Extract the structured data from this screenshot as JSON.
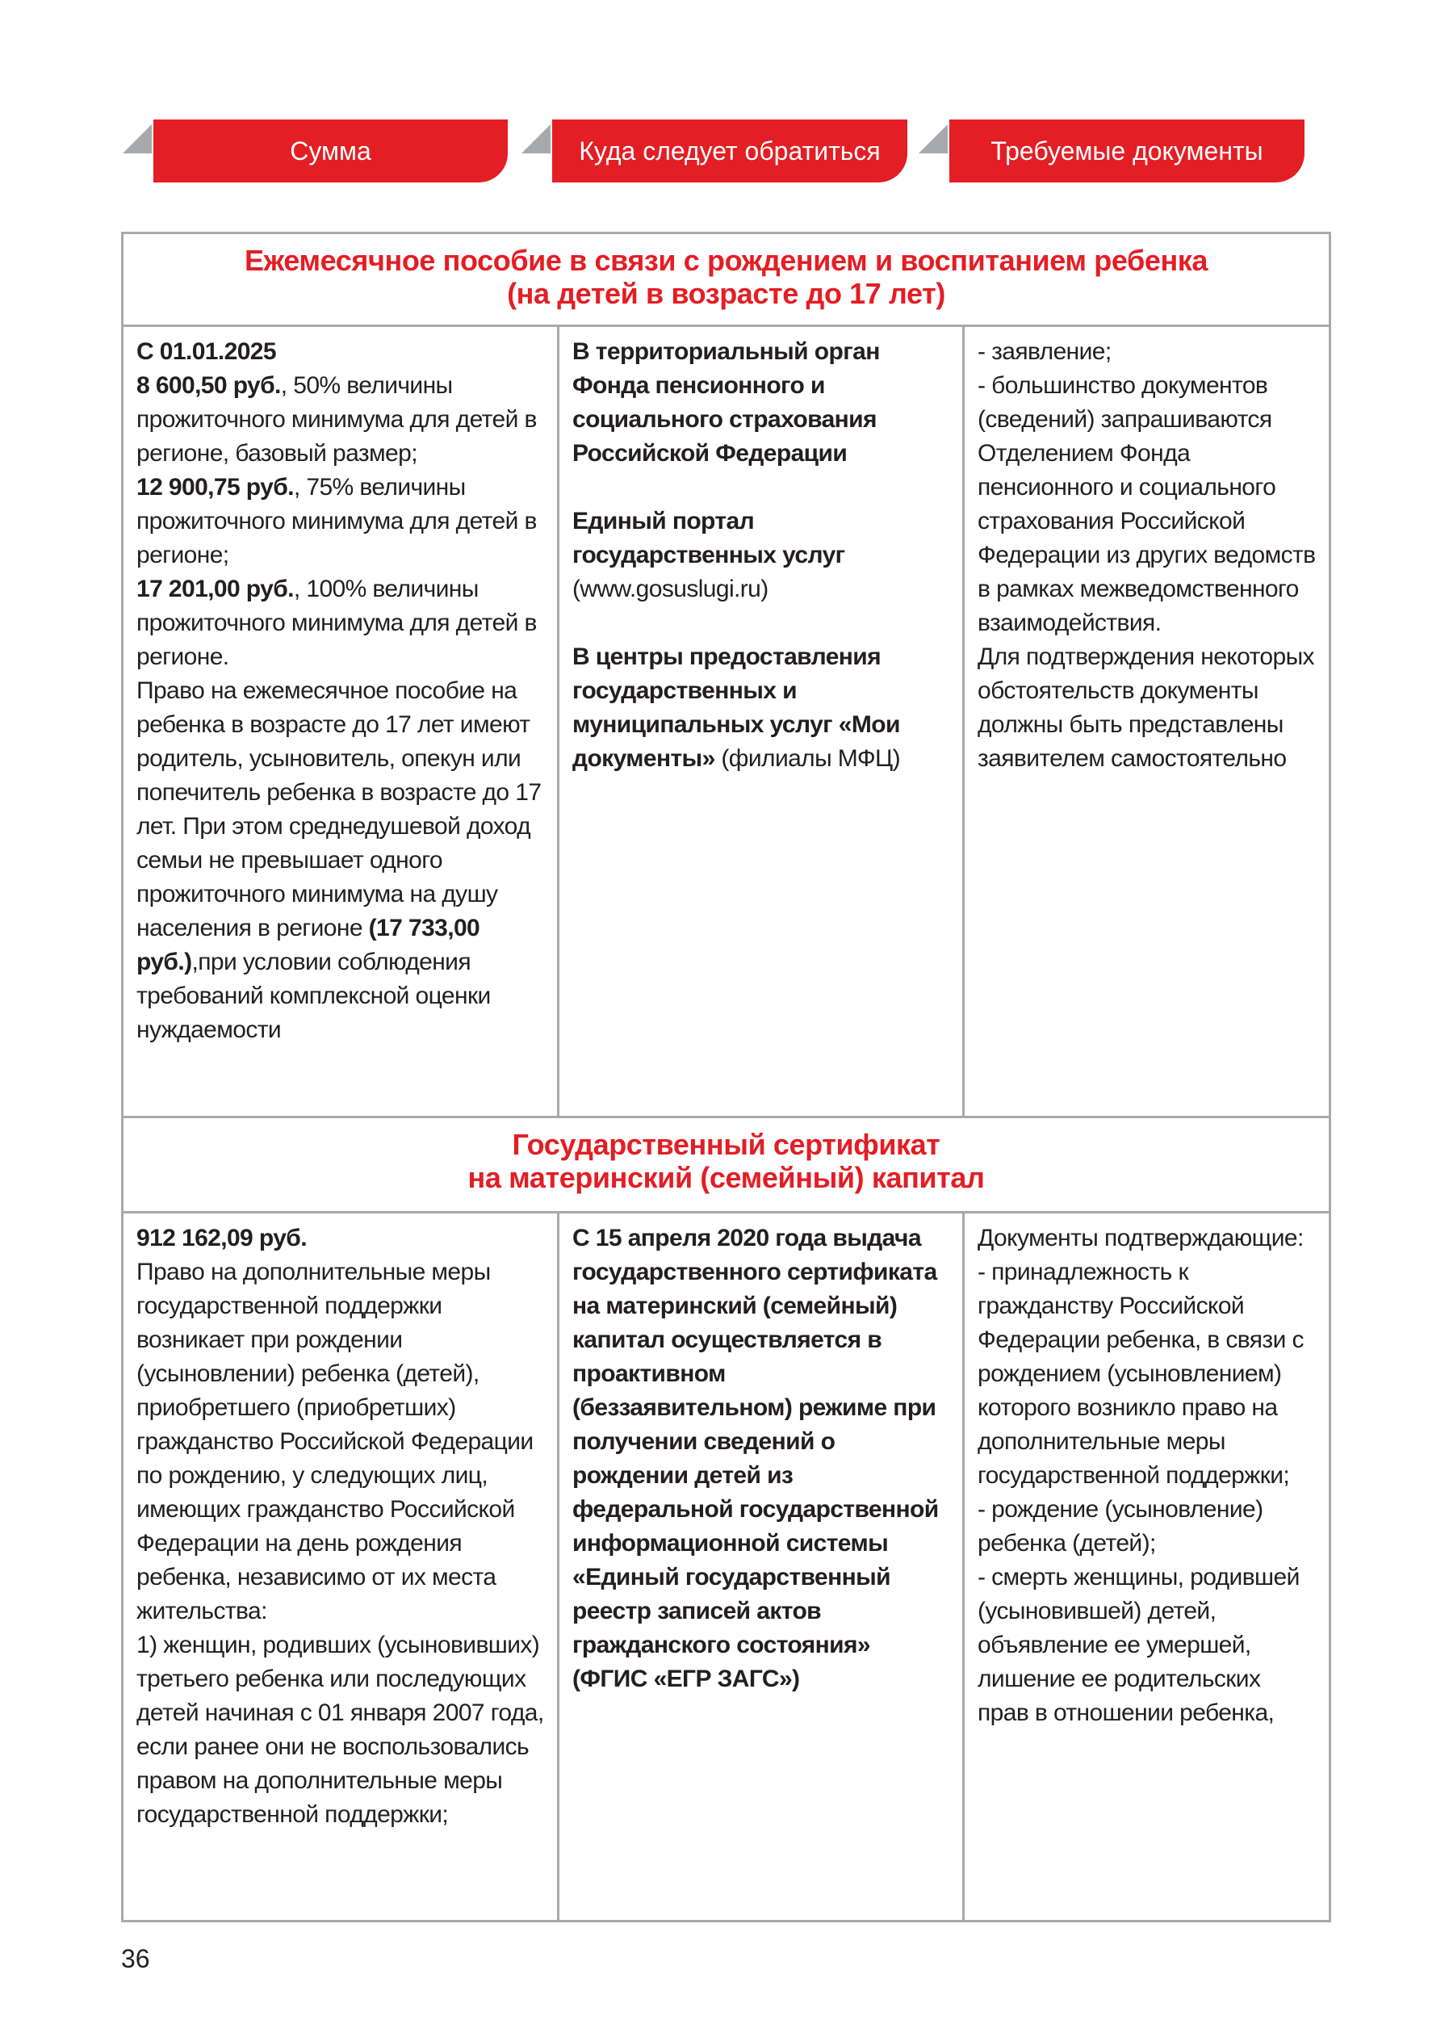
{
  "tabs": [
    "Сумма",
    "Куда следует обратиться",
    "Требуемые документы"
  ],
  "sections": [
    {
      "title": [
        "Ежемесячное пособие в связи с рождением и воспитанием ребенка",
        "(на детей в возрасте до 17 лет)"
      ],
      "cells": [
        [
          [
            [
              {
                "text": "С 01.01.2025",
                "bold": true
              }
            ],
            [
              {
                "text": "8 600,50 руб.",
                "bold": true
              },
              {
                "text": ", 50% величины прожиточного минимума для детей в регионе, базовый размер;",
                "bold": false
              }
            ],
            [
              {
                "text": "12 900,75 руб.",
                "bold": true
              },
              {
                "text": ", 75% величины прожиточного минимума для детей в регионе;",
                "bold": false
              }
            ],
            [
              {
                "text": "17 201,00 руб.",
                "bold": true
              },
              {
                "text": ", 100% величины прожиточного минимума для детей в регионе.",
                "bold": false
              }
            ],
            [
              {
                "text": "Право на ежемесячное пособие на ребенка в возрасте до 17 лет имеют родитель, усыновитель, опекун или попечитель ребенка в возрасте до 17 лет. При этом среднедушевой доход семьи не превышает одного прожиточного минимума на душу населения в регионе ",
                "bold": false
              },
              {
                "text": "(17 733,00 руб.)",
                "bold": true
              },
              {
                "text": ",при условии соблюдения требований комплексной оценки нуждаемости",
                "bold": false
              }
            ]
          ]
        ],
        [
          [
            [
              {
                "text": "В территориальный орган Фонда пенсионного и социального страхования Российской Федерации",
                "bold": true
              }
            ]
          ],
          [
            [
              {
                "text": "Единый портал государственных услуг",
                "bold": true
              }
            ],
            [
              {
                "text": "(www.gosuslugi.ru)",
                "bold": false
              }
            ]
          ],
          [
            [
              {
                "text": "В центры предоставления государственных и муниципальных услуг «Мои документы»",
                "bold": true
              },
              {
                "text": " (филиалы МФЦ)",
                "bold": false
              }
            ]
          ]
        ],
        [
          [
            [
              {
                "text": "- заявление;",
                "bold": false
              }
            ],
            [
              {
                "text": "- большинство документов (сведений) запрашиваются Отделением Фонда пенсионного и социального страхования Российской Федерации из других ведомств в рамках межведомственного взаимодействия.",
                "bold": false
              }
            ],
            [
              {
                "text": "Для подтверждения некоторых  обстоятельств документы должны быть представлены заявителем самостоятельно",
                "bold": false
              }
            ]
          ]
        ]
      ]
    },
    {
      "title": [
        "Государственный сертификат",
        "на материнский (семейный) капитал"
      ],
      "cells": [
        [
          [
            [
              {
                "text": "912 162,09 руб.",
                "bold": true
              }
            ],
            [
              {
                "text": "Право на дополнительные меры государственной поддержки возникает при рождении (усыновлении) ребенка (детей), приобретшего (приобретших) гражданство Российской Федерации по рождению, у следующих лиц, имеющих гражданство Российской Федерации на день рождения ребенка, независимо от их места жительства:",
                "bold": false
              }
            ],
            [
              {
                "text": "1) женщин, родивших (усыновивших) третьего ребенка или последующих детей начиная с 01 января 2007 года, если ранее они не воспользовались правом на дополнительные меры государственной поддержки;",
                "bold": false
              }
            ]
          ]
        ],
        [
          [
            [
              {
                "text": "С 15 апреля 2020 года выдача государственного сертификата на материнский (семейный) капитал осуществляется в проактивном (беззаявительном) режиме при получении сведений о рождении детей из федеральной государственной информационной системы «Единый государственный реестр записей актов гражданского состояния» (ФГИС «ЕГР ЗАГС»)",
                "bold": true
              }
            ]
          ]
        ],
        [
          [
            [
              {
                "text": "Документы подтверждающие:",
                "bold": false
              }
            ],
            [
              {
                "text": "- принадлежность к гражданству Российской Федерации ребенка, в связи с рождением (усыновлением) которого возникло право на дополнительные меры государственной поддержки;",
                "bold": false
              }
            ],
            [
              {
                "text": "- рождение (усыновление) ребенка (детей);",
                "bold": false
              }
            ],
            [
              {
                "text": "- смерть женщины, родившей (усыновившей) детей, объявление ее умершей, лишение ее родительских прав в отношении ребенка,",
                "bold": false
              }
            ]
          ]
        ]
      ]
    }
  ],
  "page_number": "36"
}
